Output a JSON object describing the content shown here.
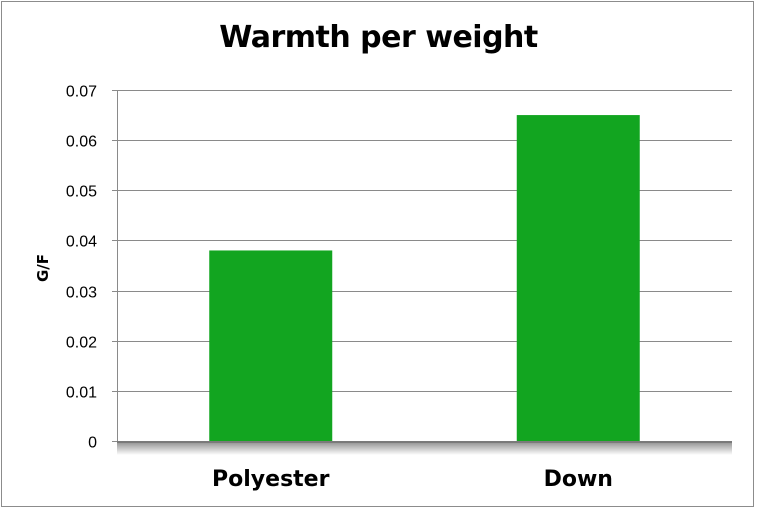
{
  "chart_data": {
    "type": "bar",
    "title": "Warmth per weight",
    "xlabel": "",
    "ylabel": "G/F",
    "categories": [
      "Polyester",
      "Down"
    ],
    "values": [
      0.038,
      0.065
    ],
    "ylim": [
      0,
      0.07
    ],
    "yticks": [
      "0",
      "0.01",
      "0.02",
      "0.03",
      "0.04",
      "0.05",
      "0.06",
      "0.07"
    ],
    "grid": true,
    "legend": "none",
    "bar_color": "#12a520"
  }
}
